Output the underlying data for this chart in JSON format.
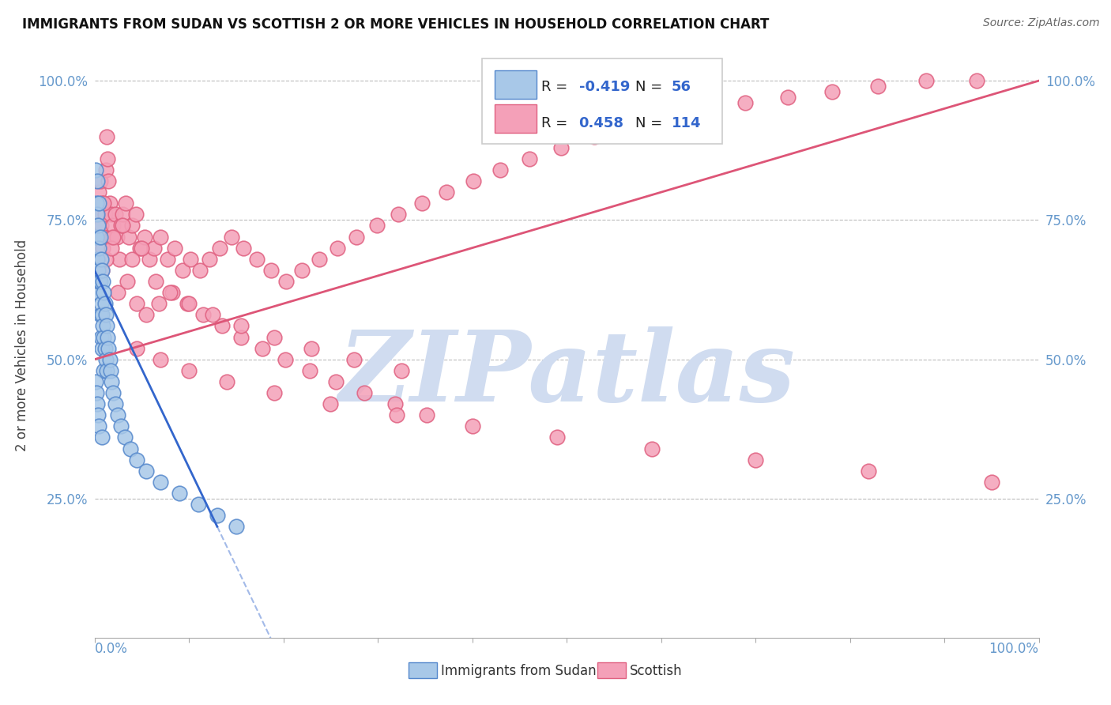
{
  "title": "IMMIGRANTS FROM SUDAN VS SCOTTISH 2 OR MORE VEHICLES IN HOUSEHOLD CORRELATION CHART",
  "source": "Source: ZipAtlas.com",
  "ylabel": "2 or more Vehicles in Household",
  "x_min": 0.0,
  "x_max": 1.0,
  "y_min": 0.0,
  "y_max": 1.05,
  "yticks": [
    0.25,
    0.5,
    0.75,
    1.0
  ],
  "ytick_labels": [
    "25.0%",
    "50.0%",
    "75.0%",
    "100.0%"
  ],
  "xtick_left": "0.0%",
  "xtick_right": "100.0%",
  "blue_R": -0.419,
  "blue_N": 56,
  "pink_R": 0.458,
  "pink_N": 114,
  "blue_color": "#A8C8E8",
  "pink_color": "#F4A0B8",
  "blue_edge_color": "#5588CC",
  "pink_edge_color": "#E06080",
  "blue_line_color": "#3366CC",
  "pink_line_color": "#DD5577",
  "tick_color": "#6699CC",
  "blue_label": "Immigrants from Sudan",
  "pink_label": "Scottish",
  "watermark": "ZIPatlas",
  "watermark_color": "#D0DCF0",
  "background_color": "#FFFFFF",
  "blue_scatter_x": [
    0.001,
    0.002,
    0.002,
    0.003,
    0.003,
    0.003,
    0.004,
    0.004,
    0.004,
    0.005,
    0.005,
    0.005,
    0.006,
    0.006,
    0.006,
    0.007,
    0.007,
    0.007,
    0.008,
    0.008,
    0.008,
    0.009,
    0.009,
    0.01,
    0.01,
    0.01,
    0.011,
    0.011,
    0.012,
    0.012,
    0.013,
    0.013,
    0.014,
    0.015,
    0.016,
    0.017,
    0.018,
    0.02,
    0.022,
    0.025,
    0.028,
    0.032,
    0.038,
    0.045,
    0.055,
    0.07,
    0.09,
    0.11,
    0.13,
    0.001,
    0.002,
    0.003,
    0.004,
    0.005,
    0.008,
    0.15
  ],
  "blue_scatter_y": [
    0.84,
    0.78,
    0.72,
    0.76,
    0.68,
    0.82,
    0.74,
    0.66,
    0.62,
    0.78,
    0.7,
    0.64,
    0.72,
    0.64,
    0.58,
    0.68,
    0.6,
    0.54,
    0.66,
    0.58,
    0.52,
    0.64,
    0.56,
    0.62,
    0.54,
    0.48,
    0.6,
    0.52,
    0.58,
    0.5,
    0.56,
    0.48,
    0.54,
    0.52,
    0.5,
    0.48,
    0.46,
    0.44,
    0.42,
    0.4,
    0.38,
    0.36,
    0.34,
    0.32,
    0.3,
    0.28,
    0.26,
    0.24,
    0.22,
    0.46,
    0.44,
    0.42,
    0.4,
    0.38,
    0.36,
    0.2
  ],
  "pink_scatter_x": [
    0.002,
    0.003,
    0.004,
    0.005,
    0.006,
    0.007,
    0.008,
    0.009,
    0.01,
    0.011,
    0.012,
    0.013,
    0.014,
    0.015,
    0.016,
    0.017,
    0.018,
    0.02,
    0.022,
    0.024,
    0.026,
    0.028,
    0.03,
    0.033,
    0.036,
    0.04,
    0.044,
    0.048,
    0.053,
    0.058,
    0.063,
    0.07,
    0.077,
    0.085,
    0.093,
    0.102,
    0.112,
    0.122,
    0.133,
    0.145,
    0.158,
    0.172,
    0.187,
    0.203,
    0.22,
    0.238,
    0.257,
    0.277,
    0.299,
    0.322,
    0.347,
    0.373,
    0.401,
    0.43,
    0.461,
    0.494,
    0.529,
    0.566,
    0.605,
    0.646,
    0.689,
    0.734,
    0.781,
    0.83,
    0.881,
    0.934,
    0.004,
    0.008,
    0.012,
    0.018,
    0.025,
    0.035,
    0.045,
    0.055,
    0.068,
    0.082,
    0.098,
    0.115,
    0.135,
    0.155,
    0.178,
    0.202,
    0.228,
    0.256,
    0.286,
    0.318,
    0.352,
    0.045,
    0.07,
    0.1,
    0.14,
    0.19,
    0.25,
    0.32,
    0.4,
    0.49,
    0.59,
    0.7,
    0.82,
    0.95,
    0.01,
    0.02,
    0.03,
    0.04,
    0.05,
    0.065,
    0.08,
    0.1,
    0.125,
    0.155,
    0.19,
    0.23,
    0.275,
    0.325
  ],
  "pink_scatter_y": [
    0.72,
    0.68,
    0.76,
    0.8,
    0.82,
    0.74,
    0.78,
    0.7,
    0.72,
    0.76,
    0.84,
    0.9,
    0.86,
    0.82,
    0.78,
    0.76,
    0.72,
    0.74,
    0.76,
    0.72,
    0.68,
    0.74,
    0.76,
    0.78,
    0.72,
    0.74,
    0.76,
    0.7,
    0.72,
    0.68,
    0.7,
    0.72,
    0.68,
    0.7,
    0.66,
    0.68,
    0.66,
    0.68,
    0.7,
    0.72,
    0.7,
    0.68,
    0.66,
    0.64,
    0.66,
    0.68,
    0.7,
    0.72,
    0.74,
    0.76,
    0.78,
    0.8,
    0.82,
    0.84,
    0.86,
    0.88,
    0.9,
    0.92,
    0.93,
    0.95,
    0.96,
    0.97,
    0.98,
    0.99,
    1.0,
    1.0,
    0.64,
    0.66,
    0.68,
    0.7,
    0.62,
    0.64,
    0.6,
    0.58,
    0.6,
    0.62,
    0.6,
    0.58,
    0.56,
    0.54,
    0.52,
    0.5,
    0.48,
    0.46,
    0.44,
    0.42,
    0.4,
    0.52,
    0.5,
    0.48,
    0.46,
    0.44,
    0.42,
    0.4,
    0.38,
    0.36,
    0.34,
    0.32,
    0.3,
    0.28,
    0.78,
    0.72,
    0.74,
    0.68,
    0.7,
    0.64,
    0.62,
    0.6,
    0.58,
    0.56,
    0.54,
    0.52,
    0.5,
    0.48
  ]
}
